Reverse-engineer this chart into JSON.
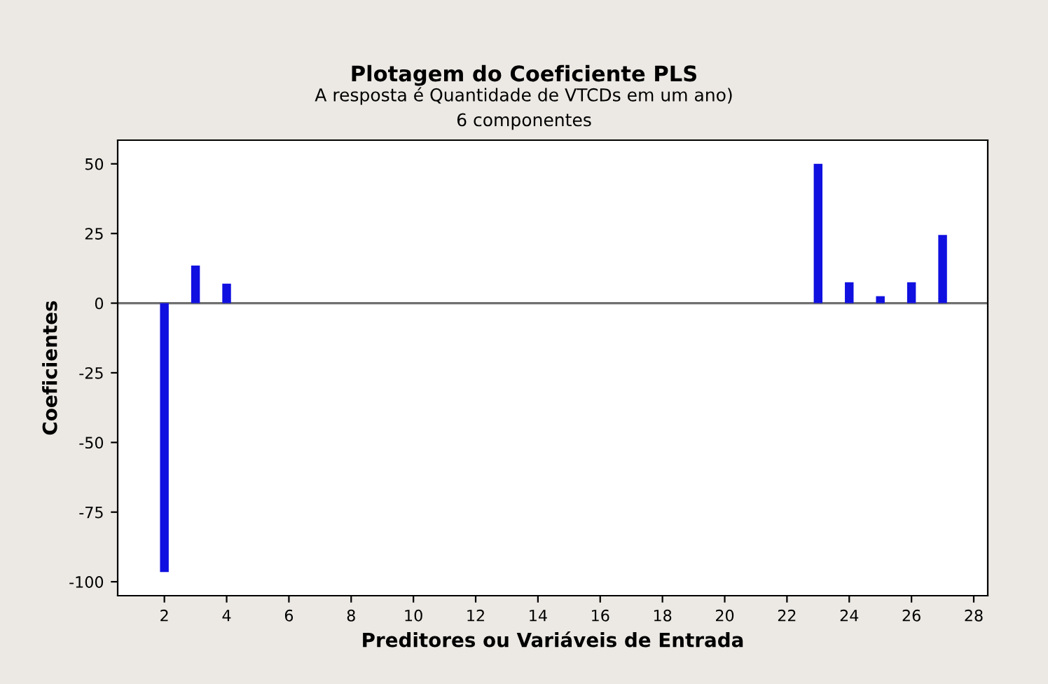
{
  "chart_data": {
    "type": "bar",
    "title": "Plotagem do Coeficiente PLS",
    "subtitle": "A resposta é Quantidade de VTCDs em um ano)\n6 componentes",
    "xlabel": "Preditores ou Variáveis de Entrada",
    "ylabel": "Coeficientes",
    "x": [
      2,
      3,
      4,
      23,
      24,
      25,
      26,
      27
    ],
    "values": [
      -96.5,
      13.5,
      7,
      50,
      7.5,
      2.5,
      7.5,
      24.5
    ],
    "color": "#1010e0",
    "xlim": [
      0.5,
      28.45
    ],
    "xticks": [
      2,
      4,
      6,
      8,
      10,
      12,
      14,
      16,
      18,
      20,
      22,
      24,
      26,
      28
    ],
    "ylim": [
      -105,
      58.5
    ],
    "yticks": [
      -100,
      -75,
      -50,
      -25,
      0,
      25,
      50
    ],
    "ref_lines": [
      {
        "axis": "y",
        "value": 0,
        "color": "#707070"
      }
    ],
    "grid": false,
    "legend": false
  }
}
